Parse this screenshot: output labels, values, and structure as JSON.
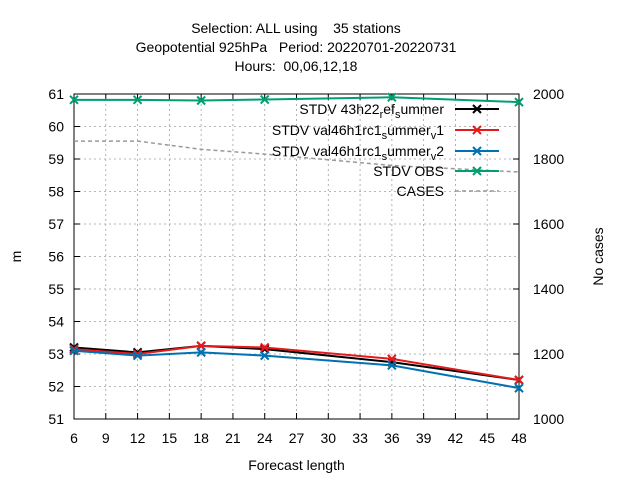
{
  "chart_data": {
    "type": "line",
    "title_lines": [
      "Selection: ALL using    35 stations",
      "Geopotential 925hPa   Period: 20220701-20220731",
      "Hours:  00,06,12,18"
    ],
    "xlabel": "Forecast length",
    "ylabel": "m",
    "y2label": "No cases",
    "xlim": [
      6,
      48
    ],
    "ylim": [
      51,
      61
    ],
    "y2lim": [
      1000,
      2000
    ],
    "xticks": [
      6,
      9,
      12,
      15,
      18,
      21,
      24,
      27,
      30,
      33,
      36,
      39,
      42,
      45,
      48
    ],
    "yticks": [
      51,
      52,
      53,
      54,
      55,
      56,
      57,
      58,
      59,
      60,
      61
    ],
    "y2ticks": [
      1000,
      1200,
      1400,
      1600,
      1800,
      2000
    ],
    "grid": true,
    "legend_position": "top-right",
    "series": [
      {
        "name": "STDV 43h22",
        "name_sub_1": "r",
        "name_mid": "ef",
        "name_sub_2": "s",
        "name_tail": "ummer",
        "axis": "y",
        "color": "#000000",
        "dashed": false,
        "marker": "x",
        "x": [
          6,
          12,
          18,
          24,
          36,
          48
        ],
        "values": [
          53.2,
          53.05,
          53.25,
          53.15,
          52.75,
          52.2
        ]
      },
      {
        "name": "STDV val46h1rc1",
        "name_sub_1": "s",
        "name_mid": "ummer",
        "name_sub_2": "v",
        "name_tail": "1",
        "axis": "y",
        "color": "#e41a1c",
        "dashed": false,
        "marker": "x",
        "x": [
          6,
          12,
          18,
          24,
          36,
          48
        ],
        "values": [
          53.15,
          53.0,
          53.25,
          53.2,
          52.85,
          52.2
        ]
      },
      {
        "name": "STDV val46h1rc1",
        "name_sub_1": "s",
        "name_mid": "ummer",
        "name_sub_2": "v",
        "name_tail": "2",
        "axis": "y",
        "color": "#0072b2",
        "dashed": false,
        "marker": "x",
        "x": [
          6,
          12,
          18,
          24,
          36,
          48
        ],
        "values": [
          53.1,
          52.95,
          53.05,
          52.95,
          52.65,
          51.95
        ]
      },
      {
        "name": "STDV OBS",
        "axis": "y",
        "color": "#009e73",
        "dashed": false,
        "marker": "x",
        "x": [
          6,
          12,
          18,
          24,
          36,
          48
        ],
        "values": [
          60.82,
          60.82,
          60.8,
          60.83,
          60.9,
          60.75
        ]
      },
      {
        "name": "CASES",
        "axis": "y2",
        "color": "#999999",
        "dashed": true,
        "marker": "none",
        "x": [
          6,
          12,
          18,
          24,
          36,
          48
        ],
        "values": [
          1855,
          1855,
          1830,
          1815,
          1780,
          1760
        ]
      }
    ]
  }
}
